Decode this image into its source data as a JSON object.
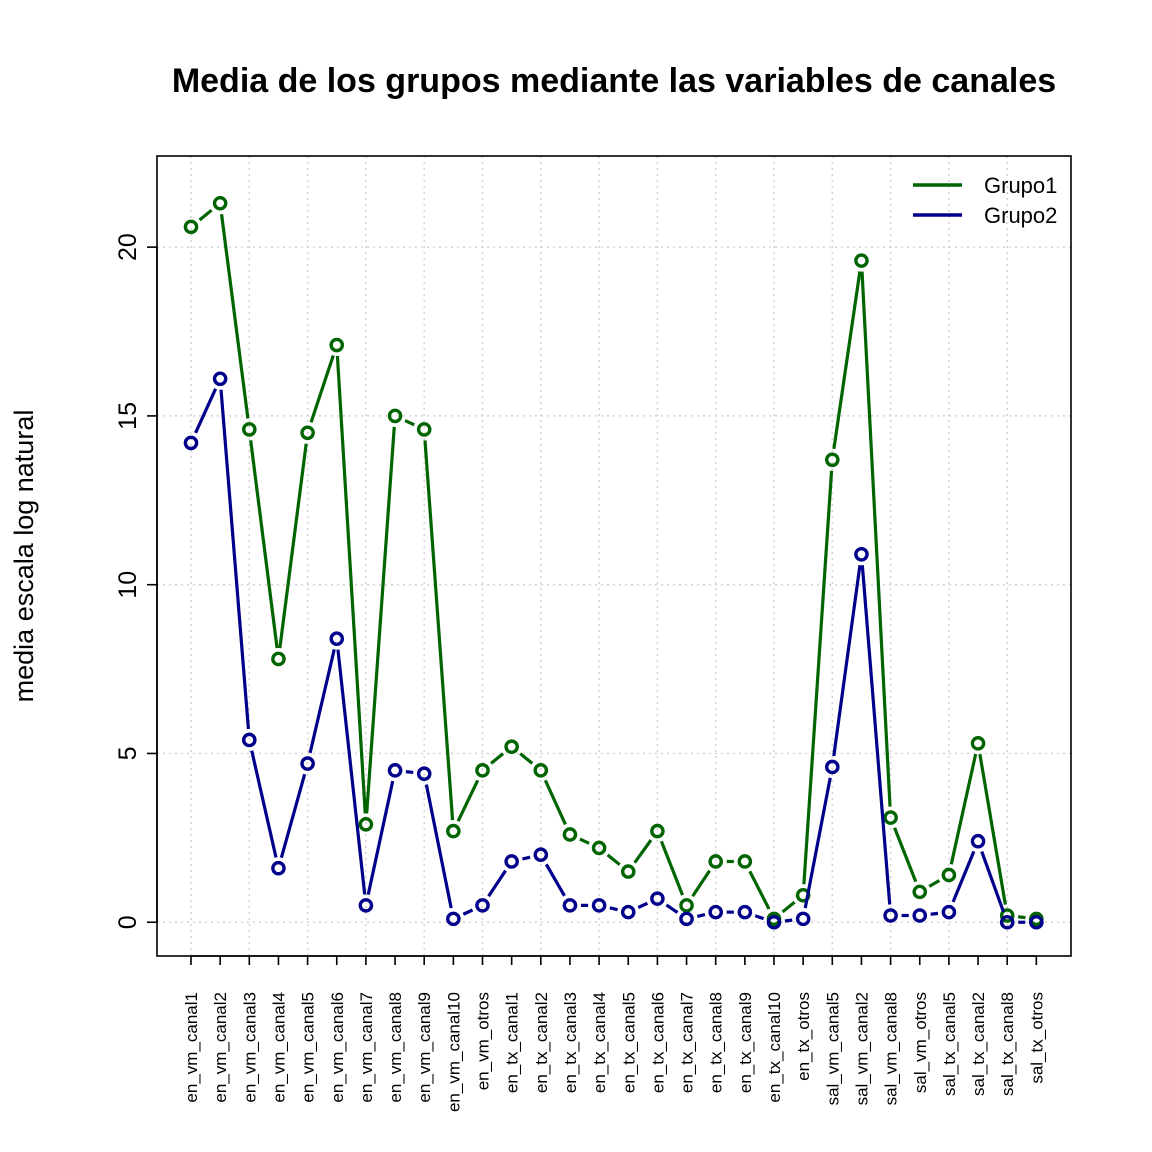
{
  "chart_data": {
    "type": "line",
    "title": "Media de los grupos mediante las variables de canales",
    "xlabel": "",
    "ylabel": "media escala log natural",
    "ylim": [
      -1,
      22.7
    ],
    "yticks": [
      0,
      5,
      10,
      15,
      20
    ],
    "grid": true,
    "legend_position": "top-right",
    "categories": [
      "en_vm_canal1",
      "en_vm_canal2",
      "en_vm_canal3",
      "en_vm_canal4",
      "en_vm_canal5",
      "en_vm_canal6",
      "en_vm_canal7",
      "en_vm_canal8",
      "en_vm_canal9",
      "en_vm_canal10",
      "en_vm_otros",
      "en_tx_canal1",
      "en_tx_canal2",
      "en_tx_canal3",
      "en_tx_canal4",
      "en_tx_canal5",
      "en_tx_canal6",
      "en_tx_canal7",
      "en_tx_canal8",
      "en_tx_canal9",
      "en_tx_canal10",
      "en_tx_otros",
      "sal_vm_canal5",
      "sal_vm_canal2",
      "sal_vm_canal8",
      "sal_vm_otros",
      "sal_tx_canal5",
      "sal_tx_canal2",
      "sal_tx_canal8",
      "sal_tx_otros"
    ],
    "series": [
      {
        "name": "Grupo1",
        "color": "#006400",
        "values": [
          20.6,
          21.3,
          14.6,
          7.8,
          14.5,
          17.1,
          2.9,
          15.0,
          14.6,
          2.7,
          4.5,
          5.2,
          4.5,
          2.6,
          2.2,
          1.5,
          2.7,
          0.5,
          1.8,
          1.8,
          0.1,
          0.8,
          13.7,
          19.6,
          3.1,
          0.9,
          1.4,
          5.3,
          0.2,
          0.1
        ]
      },
      {
        "name": "Grupo2",
        "color": "#00008B",
        "values": [
          14.2,
          16.1,
          5.4,
          1.6,
          4.7,
          8.4,
          0.5,
          4.5,
          4.4,
          0.1,
          0.5,
          1.8,
          2.0,
          0.5,
          0.5,
          0.3,
          0.7,
          0.1,
          0.3,
          0.3,
          0.0,
          0.1,
          4.6,
          10.9,
          0.2,
          0.2,
          0.3,
          2.4,
          0.0,
          0.0
        ]
      }
    ]
  }
}
